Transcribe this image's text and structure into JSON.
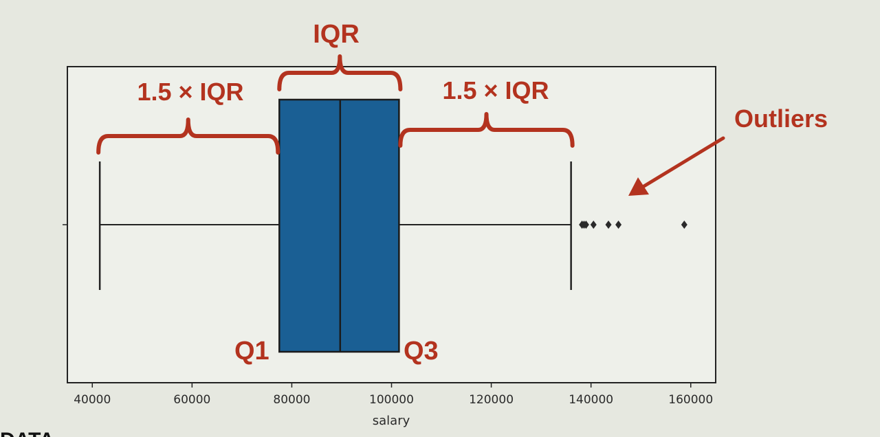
{
  "chart_data": {
    "type": "box",
    "xlabel": "salary",
    "xlim": [
      35000,
      165000
    ],
    "xticks": [
      40000,
      60000,
      80000,
      100000,
      120000,
      140000,
      160000
    ],
    "box": {
      "whisker_low": 41500,
      "q1": 77500,
      "median": 89700,
      "q3": 101500,
      "whisker_high": 136000,
      "outliers": [
        138200,
        138600,
        139000,
        140500,
        143500,
        145500,
        158700
      ],
      "color": "#1a5f94"
    },
    "annotations": {
      "iqr": "IQR",
      "left_range": "1.5 × IQR",
      "right_range": "1.5 × IQR",
      "q1": "Q1",
      "q3": "Q3",
      "outliers": "Outliers"
    },
    "annotation_color": "#b3331f",
    "grid": false
  },
  "footer_text": "DATA"
}
